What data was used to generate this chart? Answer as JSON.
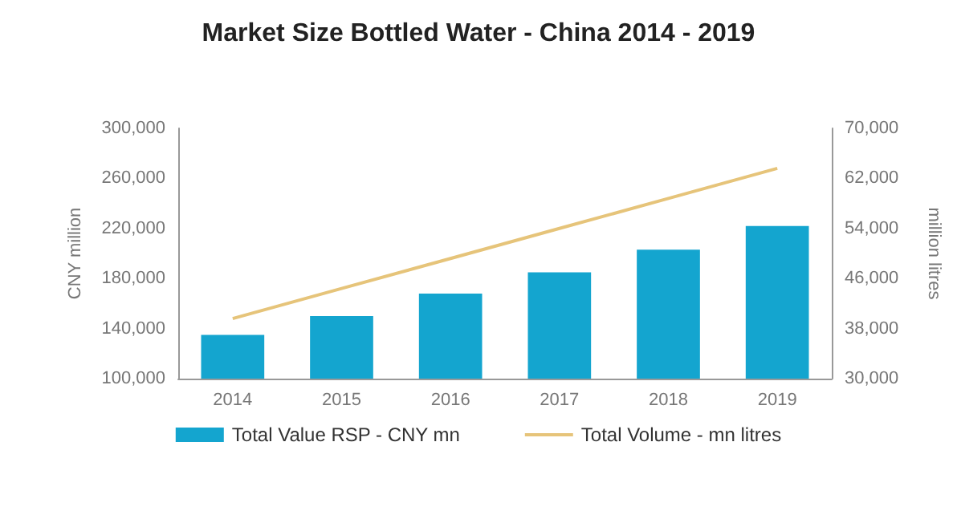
{
  "chart_data": {
    "type": "bar",
    "title": "Market Size Bottled Water - China 2014 - 2019",
    "ylabel": "CNY million",
    "y2label": "million litres",
    "categories": [
      "2014",
      "2015",
      "2016",
      "2017",
      "2018",
      "2019"
    ],
    "series": [
      {
        "name": "Total Value RSP - CNY mn",
        "color": "#14a5cf",
        "values": [
          135000,
          150000,
          168000,
          185000,
          203000,
          222000
        ]
      },
      {
        "name": "Total Volume - mn litres",
        "type": "line",
        "axis": "y2",
        "color": "#e6c47a",
        "values": [
          39600,
          44400,
          49200,
          54000,
          58800,
          63600
        ]
      }
    ],
    "ylim": [
      100000,
      300000
    ],
    "yticks": [
      {
        "value": 100000,
        "label": "100,000"
      },
      {
        "value": 140000,
        "label": "140,000"
      },
      {
        "value": 180000,
        "label": "180,000"
      },
      {
        "value": 220000,
        "label": "220,000"
      },
      {
        "value": 260000,
        "label": "260,000"
      },
      {
        "value": 300000,
        "label": "300,000"
      }
    ],
    "y2lim": [
      30000,
      70000
    ],
    "y2ticks": [
      {
        "value": 30000,
        "label": "30,000"
      },
      {
        "value": 38000,
        "label": "38,000"
      },
      {
        "value": 46000,
        "label": "46,000"
      },
      {
        "value": 54000,
        "label": "54,000"
      },
      {
        "value": 62000,
        "label": "62,000"
      },
      {
        "value": 70000,
        "label": "70,000"
      }
    ],
    "grid": false,
    "legend": "bottom",
    "marker": "none"
  }
}
